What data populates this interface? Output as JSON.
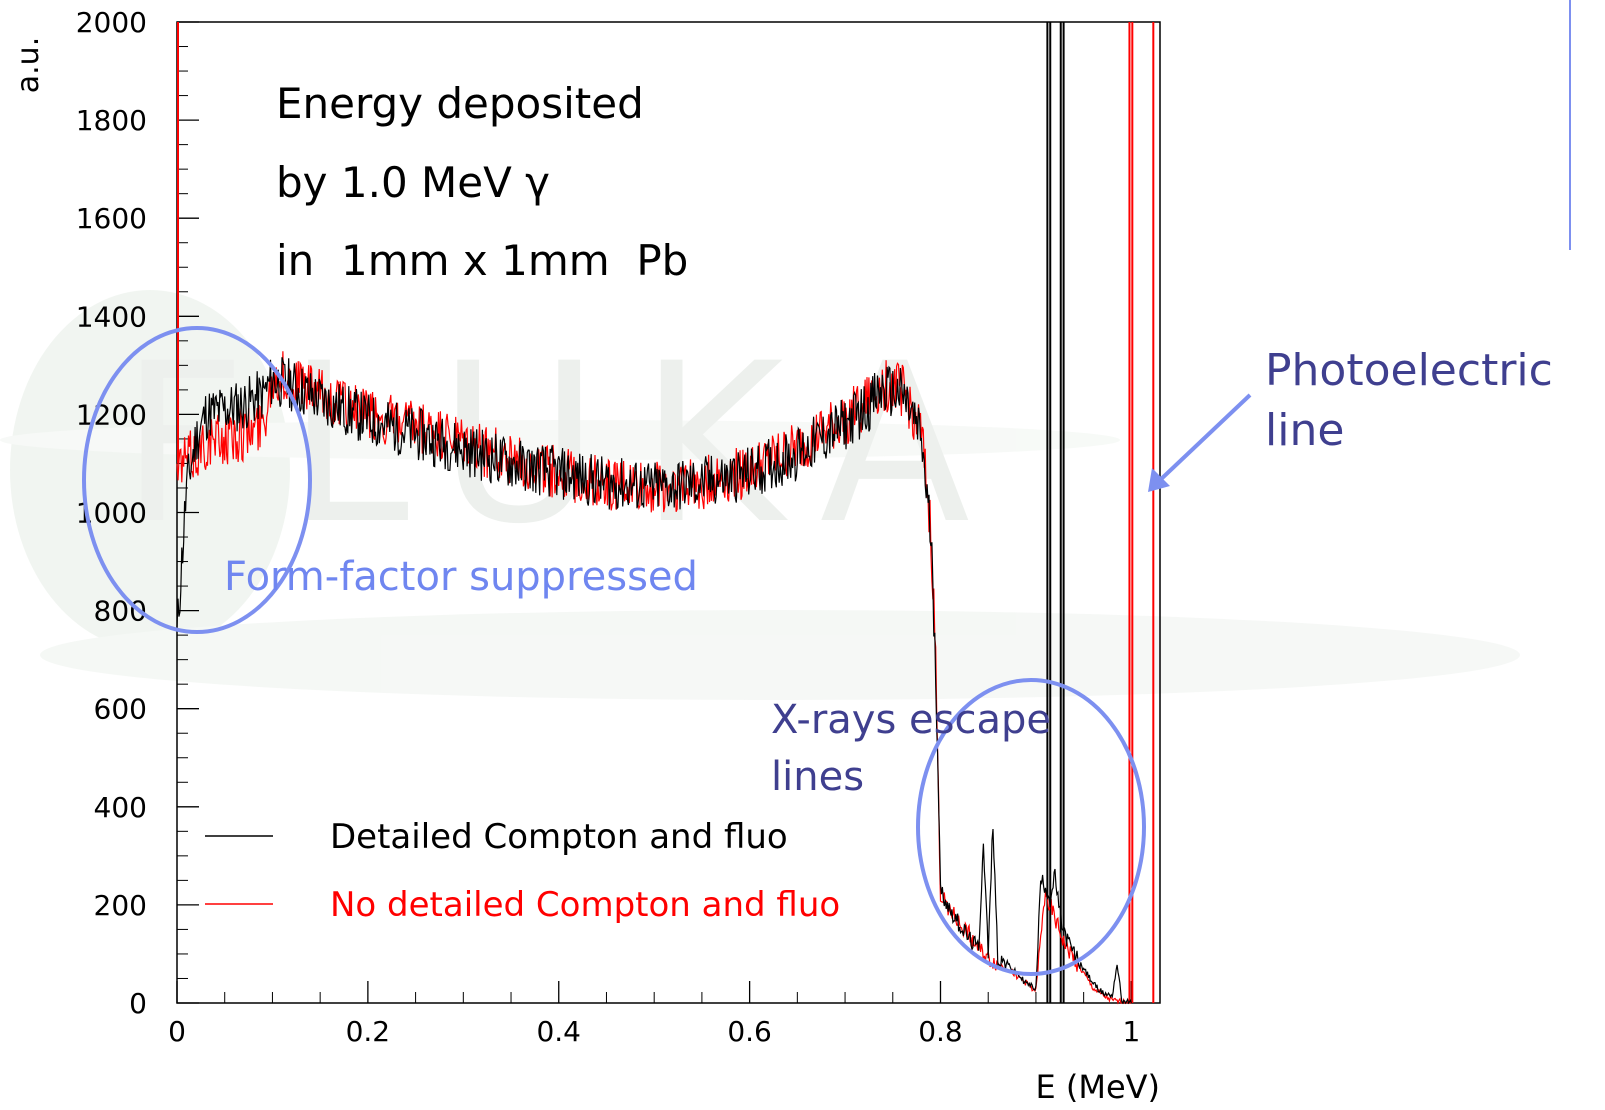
{
  "chart_data": {
    "type": "line",
    "title": "",
    "inset_text": [
      "Energy deposited",
      "by 1.0 MeV γ",
      "in  1mm x 1mm  Pb"
    ],
    "xlabel": "E (MeV)",
    "ylabel": "a.u.",
    "xlim": [
      0,
      1.03
    ],
    "ylim": [
      0,
      2000
    ],
    "x_ticks": [
      0,
      0.2,
      0.4,
      0.6,
      0.8,
      1
    ],
    "x_tick_labels": [
      "0",
      "0.2",
      "0.4",
      "0.6",
      "0.8",
      "1"
    ],
    "y_ticks": [
      0,
      200,
      400,
      600,
      800,
      1000,
      1200,
      1400,
      1600,
      1800,
      2000
    ],
    "y_tick_labels": [
      "0",
      "200",
      "400",
      "600",
      "800",
      "1000",
      "1200",
      "1400",
      "1600",
      "1800",
      "2000"
    ],
    "grid": false,
    "legend_position": "bottom-left",
    "series": [
      {
        "name": "Detailed Compton and fluo",
        "color": "#000000",
        "x": [
          0.0,
          0.005,
          0.01,
          0.02,
          0.03,
          0.05,
          0.07,
          0.09,
          0.1,
          0.12,
          0.15,
          0.2,
          0.25,
          0.3,
          0.35,
          0.4,
          0.45,
          0.5,
          0.55,
          0.6,
          0.65,
          0.7,
          0.72,
          0.74,
          0.76,
          0.77,
          0.78,
          0.785,
          0.79,
          0.795,
          0.8,
          0.81,
          0.82,
          0.83,
          0.84,
          0.845,
          0.85,
          0.855,
          0.86,
          0.87,
          0.88,
          0.89,
          0.9,
          0.905,
          0.91,
          0.915,
          0.92,
          0.925,
          0.93,
          0.94,
          0.95,
          0.96,
          0.97,
          0.98,
          0.985,
          0.99,
          0.995,
          1.0
        ],
        "y": [
          750,
          900,
          1050,
          1150,
          1200,
          1210,
          1220,
          1240,
          1270,
          1260,
          1230,
          1190,
          1160,
          1130,
          1100,
          1080,
          1060,
          1050,
          1060,
          1080,
          1120,
          1180,
          1210,
          1250,
          1240,
          1200,
          1150,
          1050,
          950,
          700,
          230,
          190,
          160,
          130,
          110,
          330,
          100,
          370,
          90,
          80,
          60,
          40,
          30,
          250,
          240,
          210,
          260,
          180,
          140,
          100,
          70,
          40,
          20,
          15,
          80,
          5,
          2,
          0
        ]
      },
      {
        "name": "No detailed Compton and fluo",
        "color": "#ff0000",
        "x": [
          0.0,
          0.005,
          0.01,
          0.02,
          0.03,
          0.05,
          0.07,
          0.09,
          0.1,
          0.12,
          0.15,
          0.2,
          0.25,
          0.3,
          0.35,
          0.4,
          0.45,
          0.5,
          0.55,
          0.6,
          0.65,
          0.7,
          0.72,
          0.74,
          0.76,
          0.77,
          0.78,
          0.785,
          0.79,
          0.795,
          0.8,
          0.81,
          0.82,
          0.83,
          0.84,
          0.85,
          0.86,
          0.87,
          0.88,
          0.89,
          0.9,
          0.91,
          0.915,
          0.92,
          0.93,
          0.94,
          0.95,
          0.96,
          0.97,
          0.98,
          0.99,
          1.0
        ],
        "y": [
          1080,
          1100,
          1110,
          1120,
          1140,
          1150,
          1160,
          1180,
          1280,
          1270,
          1240,
          1200,
          1170,
          1140,
          1110,
          1080,
          1060,
          1050,
          1060,
          1085,
          1130,
          1190,
          1220,
          1260,
          1250,
          1210,
          1160,
          1060,
          960,
          700,
          220,
          190,
          160,
          140,
          110,
          90,
          80,
          70,
          55,
          40,
          25,
          230,
          200,
          170,
          120,
          90,
          60,
          30,
          15,
          5,
          2,
          0
        ]
      }
    ],
    "vertical_lines": [
      {
        "x": 0.912,
        "color": "#000000"
      },
      {
        "x": 0.915,
        "color": "#000000"
      },
      {
        "x": 0.926,
        "color": "#000000"
      },
      {
        "x": 0.929,
        "color": "#000000"
      },
      {
        "x": 0.998,
        "color": "#ff0000"
      },
      {
        "x": 1.001,
        "color": "#ff0000"
      },
      {
        "x": 1.023,
        "color": "#ff0000"
      }
    ],
    "annotations": [
      {
        "text": "Form-factor suppressed",
        "color": "#6f86f0"
      },
      {
        "text": "X-rays escape",
        "color": "#3f3f8f"
      },
      {
        "text": "lines",
        "color": "#3f3f8f"
      },
      {
        "text": "Photoelectric",
        "color": "#3f3f8f"
      },
      {
        "text": "line",
        "color": "#3f3f8f"
      }
    ],
    "background_watermark": "FLUKA"
  }
}
